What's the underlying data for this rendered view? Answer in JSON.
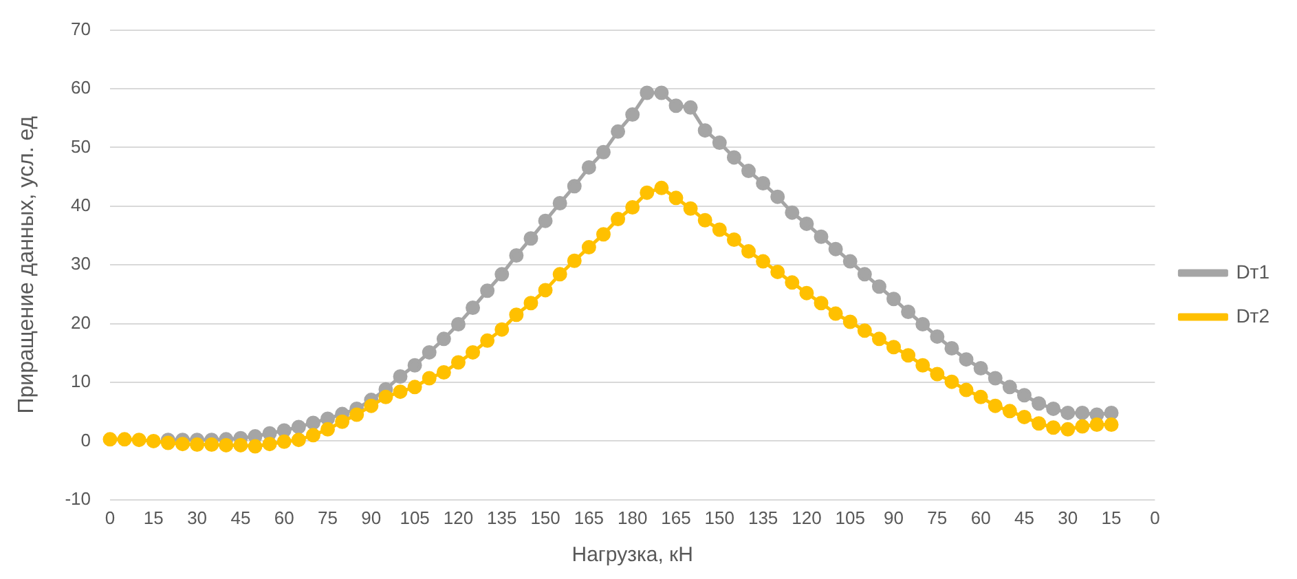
{
  "chart_data": {
    "type": "line",
    "xlabel": "Нагрузка, кН",
    "ylabel": "Приращение данных, усл. ед",
    "categories": [
      "0",
      null,
      null,
      "15",
      null,
      null,
      "30",
      null,
      null,
      "45",
      null,
      null,
      "60",
      null,
      null,
      "75",
      null,
      null,
      "90",
      null,
      null,
      "105",
      null,
      null,
      "120",
      null,
      null,
      "135",
      null,
      null,
      "150",
      null,
      null,
      "165",
      null,
      null,
      "180",
      null,
      null,
      "165",
      null,
      null,
      "150",
      null,
      null,
      "135",
      null,
      null,
      "120",
      null,
      null,
      "105",
      null,
      null,
      "90",
      null,
      null,
      "75",
      null,
      null,
      "60",
      null,
      null,
      "45",
      null,
      null,
      "30",
      null,
      null,
      "15",
      null,
      null,
      "0"
    ],
    "series": [
      {
        "name": "Dт1",
        "color": "#a5a5a5",
        "values": [
          null,
          null,
          null,
          null,
          0.2,
          0.2,
          0.2,
          0.2,
          0.3,
          0.5,
          0.8,
          1.3,
          1.8,
          2.4,
          3.1,
          3.8,
          4.6,
          5.5,
          7.0,
          8.8,
          11.0,
          12.9,
          15.1,
          17.4,
          19.9,
          22.7,
          25.6,
          28.4,
          31.6,
          34.5,
          37.5,
          40.5,
          43.4,
          46.6,
          49.2,
          52.7,
          55.6,
          59.3,
          59.3,
          57.1,
          56.8,
          52.9,
          50.8,
          48.3,
          46.0,
          43.9,
          41.6,
          38.9,
          37.0,
          34.8,
          32.7,
          30.6,
          28.4,
          26.3,
          24.2,
          22.0,
          19.9,
          17.8,
          15.8,
          13.9,
          12.4,
          10.7,
          9.2,
          7.8,
          6.4,
          5.5,
          4.8,
          4.8,
          4.5,
          4.8,
          null,
          null,
          null
        ]
      },
      {
        "name": "Dт2",
        "color": "#ffc000",
        "values": [
          0.3,
          0.3,
          0.2,
          0,
          -0.3,
          -0.5,
          -0.6,
          -0.6,
          -0.7,
          -0.7,
          -0.9,
          -0.5,
          -0.1,
          0.2,
          1.0,
          2.0,
          3.3,
          4.5,
          6.0,
          7.5,
          8.4,
          9.2,
          10.7,
          11.7,
          13.4,
          15.1,
          17.1,
          19.0,
          21.5,
          23.5,
          25.7,
          28.4,
          30.7,
          33.0,
          35.2,
          37.8,
          39.8,
          42.3,
          43.1,
          41.4,
          39.6,
          37.6,
          36.0,
          34.3,
          32.3,
          30.6,
          28.8,
          27.0,
          25.2,
          23.5,
          21.7,
          20.3,
          18.8,
          17.4,
          16.0,
          14.6,
          12.9,
          11.4,
          10.1,
          8.7,
          7.5,
          6.0,
          5.1,
          4.1,
          3.0,
          2.3,
          2.0,
          2.5,
          2.8,
          2.8,
          null,
          null,
          null
        ]
      }
    ],
    "ylim": [
      -10,
      70
    ],
    "yticks": [
      -10,
      0,
      10,
      20,
      30,
      40,
      50,
      60,
      70
    ],
    "grid": "y",
    "legend": "right",
    "marker": "circle",
    "line_style": "solid"
  }
}
